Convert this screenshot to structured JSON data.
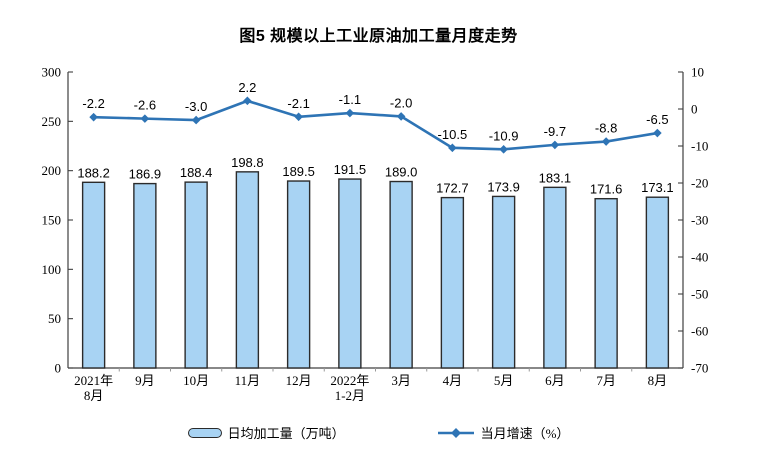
{
  "title": "图5 规模以上工业原油加工量月度走势",
  "chart_data": {
    "type": "combo-bar-line",
    "title": "图5 规模以上工业原油加工量月度走势",
    "categories": [
      "2021年\n8月",
      "9月",
      "10月",
      "11月",
      "12月",
      "2022年\n1-2月",
      "3月",
      "4月",
      "5月",
      "6月",
      "7月",
      "8月"
    ],
    "series": [
      {
        "name": "日均加工量（万吨）",
        "type": "bar",
        "axis": "left",
        "values": [
          188.2,
          186.9,
          188.4,
          198.8,
          189.5,
          191.5,
          189.0,
          172.7,
          173.9,
          183.1,
          171.6,
          173.1
        ],
        "fill_color": "#A8D3F3",
        "border_color": "#2B2B2B"
      },
      {
        "name": "当月增速（%）",
        "type": "line",
        "axis": "right",
        "values": [
          -2.2,
          -2.6,
          -3.0,
          2.2,
          -2.1,
          -1.1,
          -2.0,
          -10.5,
          -10.9,
          -9.7,
          -8.8,
          -6.5
        ],
        "color": "#2E74B5",
        "marker": "diamond"
      }
    ],
    "left_axis": {
      "min": 0,
      "max": 300,
      "step": 50,
      "ticks": [
        300,
        250,
        200,
        150,
        100,
        50,
        0
      ]
    },
    "right_axis": {
      "min": -70,
      "max": 10,
      "step": 10,
      "ticks": [
        10,
        0,
        -10,
        -20,
        -30,
        -40,
        -50,
        -60,
        -70
      ]
    },
    "grid": false,
    "legend_position": "bottom",
    "axis_color": "#404040",
    "text_color": "#000000"
  }
}
